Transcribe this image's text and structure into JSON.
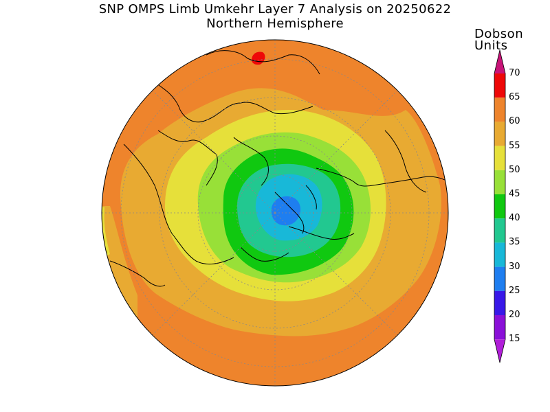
{
  "title": "SNP OMPS Limb Umkehr Layer 7 Analysis on 20250622",
  "subtitle": "Northern Hemisphere",
  "colorbar": {
    "units_line1": "Dobson",
    "units_line2": "Units",
    "ticks": [
      "70",
      "65",
      "60",
      "55",
      "50",
      "45",
      "40",
      "35",
      "30",
      "25",
      "20",
      "15"
    ],
    "levels": [
      {
        "value": "15-20",
        "color": "#8a10d8"
      },
      {
        "value": "20-25",
        "color": "#3818e8"
      },
      {
        "value": "25-30",
        "color": "#1e7ef0"
      },
      {
        "value": "30-35",
        "color": "#18b8d8"
      },
      {
        "value": "35-40",
        "color": "#22c890"
      },
      {
        "value": "40-45",
        "color": "#10c810"
      },
      {
        "value": "45-50",
        "color": "#98e038"
      },
      {
        "value": "50-55",
        "color": "#e6e03a"
      },
      {
        "value": "55-60",
        "color": "#e8aa32"
      },
      {
        "value": "60-65",
        "color": "#ee842c"
      },
      {
        "value": "65-70",
        "color": "#ee0808"
      }
    ],
    "over_color": "#c81478",
    "under_color": "#b01ed8"
  }
}
